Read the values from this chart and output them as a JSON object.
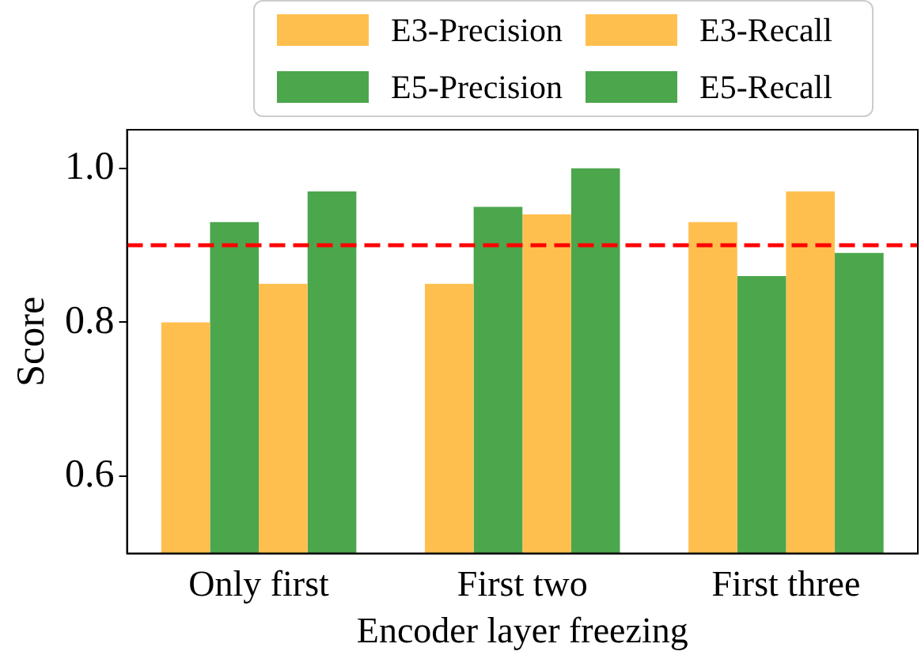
{
  "chart_data": {
    "type": "bar",
    "xlabel": "Encoder layer freezing",
    "ylabel": "Score",
    "categories": [
      "Only first",
      "First two",
      "First three"
    ],
    "series": [
      {
        "name": "E3-Precision",
        "color": "#ffbf4f",
        "values": [
          0.8,
          0.85,
          0.93
        ]
      },
      {
        "name": "E5-Precision",
        "color": "#4ca64c",
        "values": [
          0.93,
          0.95,
          0.86
        ]
      },
      {
        "name": "E3-Recall",
        "color": "#ffbf4f",
        "values": [
          0.85,
          0.94,
          0.97
        ]
      },
      {
        "name": "E5-Recall",
        "color": "#4ca64c",
        "values": [
          0.97,
          1.0,
          0.89
        ]
      }
    ],
    "ylim": [
      0.5,
      1.05
    ],
    "yticks": [
      {
        "value": 0.6,
        "label": "0.6"
      },
      {
        "value": 0.8,
        "label": "0.8"
      },
      {
        "value": 1.0,
        "label": "1.0"
      }
    ],
    "ref_lines": [
      {
        "axis": "y",
        "value": 0.9,
        "color": "#ff0000",
        "line_style": "dashed"
      }
    ],
    "grid": false,
    "legend": "top"
  }
}
